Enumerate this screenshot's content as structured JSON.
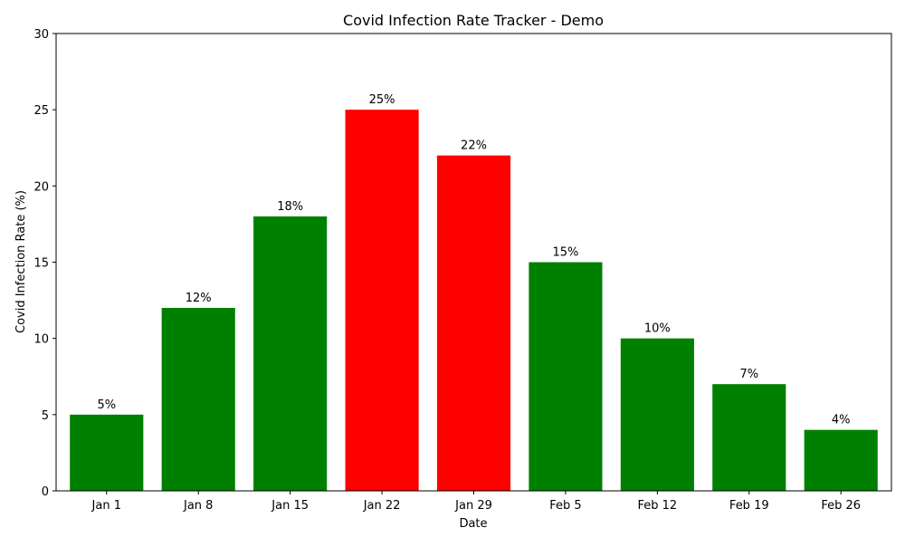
{
  "chart_data": {
    "type": "bar",
    "title": "Covid Infection Rate Tracker - Demo",
    "xlabel": "Date",
    "ylabel": "Covid Infection Rate (%)",
    "categories": [
      "Jan 1",
      "Jan 8",
      "Jan 15",
      "Jan 22",
      "Jan 29",
      "Feb 5",
      "Feb 12",
      "Feb 19",
      "Feb 26"
    ],
    "values": [
      5,
      12,
      18,
      25,
      22,
      15,
      10,
      7,
      4
    ],
    "bar_labels": [
      "5%",
      "12%",
      "18%",
      "25%",
      "22%",
      "15%",
      "10%",
      "7%",
      "4%"
    ],
    "bar_colors": [
      "#008000",
      "#008000",
      "#008000",
      "#ff0000",
      "#ff0000",
      "#008000",
      "#008000",
      "#008000",
      "#008000"
    ],
    "ylim": [
      0,
      30
    ],
    "yticks": [
      0,
      5,
      10,
      15,
      20,
      25,
      30
    ],
    "grid": false,
    "legend": "none"
  }
}
